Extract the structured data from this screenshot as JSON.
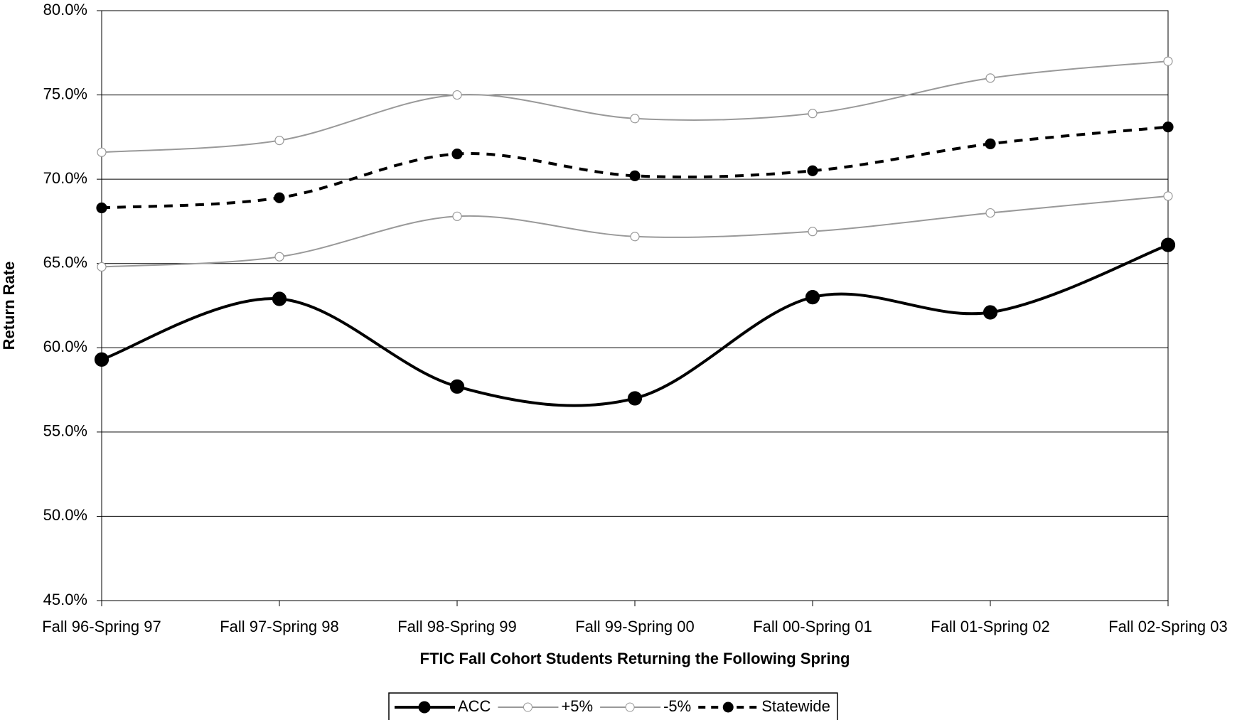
{
  "chart_data": {
    "type": "line",
    "x_label": "FTIC Fall Cohort Students Returning the Following Spring",
    "y_label": "Return Rate",
    "categories": [
      "Fall 96-Spring 97",
      "Fall 97-Spring 98",
      "Fall 98-Spring 99",
      "Fall 99-Spring 00",
      "Fall 00-Spring 01",
      "Fall 01-Spring 02",
      "Fall 02-Spring 03"
    ],
    "series": [
      {
        "name": "ACC",
        "color": "#000000",
        "line_style": "solid",
        "marker": "filled",
        "values": [
          59.3,
          62.9,
          57.7,
          57.0,
          63.0,
          62.1,
          66.1
        ]
      },
      {
        "name": "+5%",
        "color": "#999999",
        "line_style": "solid",
        "marker": "hollow",
        "values": [
          71.6,
          72.3,
          75.0,
          73.6,
          73.9,
          76.0,
          77.0
        ]
      },
      {
        "name": "-5%",
        "color": "#999999",
        "line_style": "solid",
        "marker": "hollow",
        "values": [
          64.8,
          65.4,
          67.8,
          66.6,
          66.9,
          68.0,
          69.0
        ]
      },
      {
        "name": "Statewide",
        "color": "#000000",
        "line_style": "dashed",
        "marker": "filled",
        "values": [
          68.3,
          68.9,
          71.5,
          70.2,
          70.5,
          72.1,
          73.1
        ]
      }
    ],
    "ylim": [
      45,
      80
    ],
    "yticks": [
      {
        "value": 45,
        "label": "45.0%"
      },
      {
        "value": 50,
        "label": "50.0%"
      },
      {
        "value": 55,
        "label": "55.0%"
      },
      {
        "value": 60,
        "label": "60.0%"
      },
      {
        "value": 65,
        "label": "65.0%"
      },
      {
        "value": 70,
        "label": "70.0%"
      },
      {
        "value": 75,
        "label": "75.0%"
      },
      {
        "value": 80,
        "label": "80.0%"
      }
    ],
    "grid": true,
    "legend": "bottom"
  }
}
